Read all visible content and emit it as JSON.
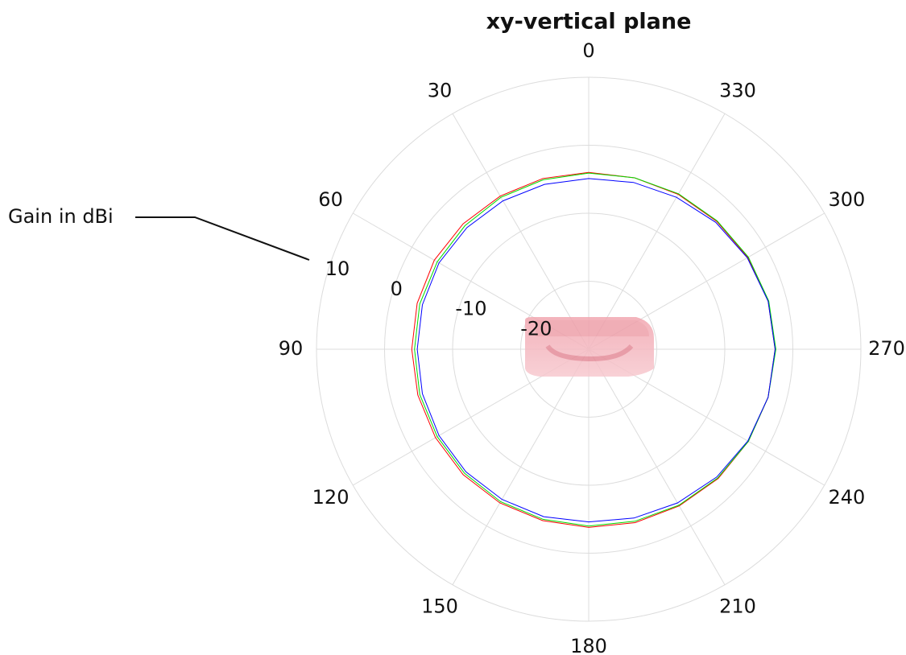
{
  "chart_data": {
    "type": "polar",
    "title": "xy-vertical plane",
    "annotation": "Gain in dBi",
    "theta": [
      0,
      15,
      30,
      45,
      60,
      75,
      90,
      105,
      120,
      135,
      150,
      165,
      180,
      195,
      210,
      225,
      240,
      255,
      270,
      285,
      300,
      315,
      330,
      345
    ],
    "series": [
      {
        "color": "#ff0000",
        "values": [
          -4.0,
          -4.0,
          -4.0,
          -3.9,
          -3.8,
          -3.9,
          -4.0,
          -4.0,
          -4.0,
          -3.9,
          -3.9,
          -3.9,
          -3.8,
          -3.6,
          -3.4,
          -3.1,
          -2.9,
          -2.7,
          -2.6,
          -2.7,
          -3.0,
          -3.4,
          -3.7,
          -3.9
        ]
      },
      {
        "color": "#00dd00",
        "values": [
          -4.1,
          -4.2,
          -4.2,
          -4.3,
          -4.3,
          -4.3,
          -4.4,
          -4.3,
          -4.3,
          -4.2,
          -4.1,
          -4.1,
          -4.0,
          -3.8,
          -3.5,
          -3.2,
          -2.9,
          -2.7,
          -2.5,
          -2.6,
          -2.9,
          -3.3,
          -3.6,
          -3.9
        ]
      },
      {
        "color": "#0000ff",
        "values": [
          -4.9,
          -4.9,
          -4.8,
          -4.7,
          -4.6,
          -4.7,
          -4.8,
          -4.7,
          -4.6,
          -4.5,
          -4.5,
          -4.5,
          -4.6,
          -4.3,
          -3.9,
          -3.4,
          -3.0,
          -2.7,
          -2.6,
          -2.7,
          -3.1,
          -3.6,
          -4.2,
          -4.6
        ]
      }
    ],
    "thetaticks": [
      0,
      30,
      60,
      90,
      120,
      150,
      180,
      210,
      240,
      270,
      300,
      330
    ],
    "rlim": [
      -30,
      10
    ],
    "rticks": [
      -20,
      -10,
      0,
      10
    ],
    "grid": true
  }
}
